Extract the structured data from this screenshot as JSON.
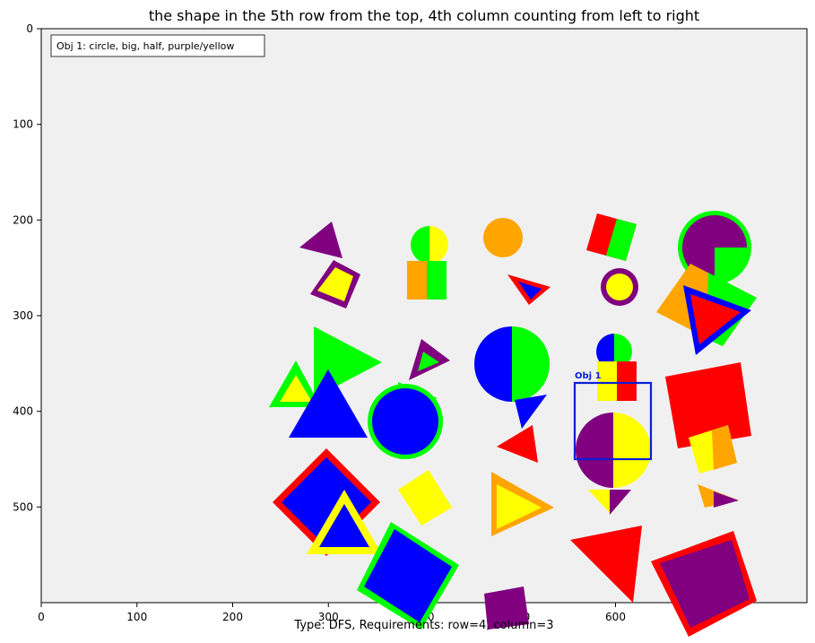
{
  "figure": {
    "title": "the shape in the 5th row from the top, 4th column counting from left to right",
    "footer": "Type: DFS, Requirements: row=4, column=3",
    "legend_text": "Obj 1: circle, big, half, purple/yellow",
    "box_label": "Obj 1",
    "background_color": "#f0f0f0",
    "box_color": "#0a1fd6"
  },
  "axes": {
    "x_ticks": [
      "0",
      "100",
      "200",
      "300",
      "400",
      "500",
      "600",
      "700"
    ],
    "y_ticks": [
      "0",
      "100",
      "200",
      "300",
      "400",
      "500"
    ],
    "x_range": [
      0,
      800
    ],
    "y_range": [
      600,
      0
    ]
  },
  "chart_data": {
    "type": "scatter",
    "title": "the shape in the 5th row from the top, 4th column counting from left to right",
    "xlim": [
      0,
      800
    ],
    "ylim": [
      600,
      0
    ],
    "annotation": {
      "label": "Obj 1",
      "x": [
        558,
        638
      ],
      "y": [
        370,
        450
      ]
    }
  }
}
